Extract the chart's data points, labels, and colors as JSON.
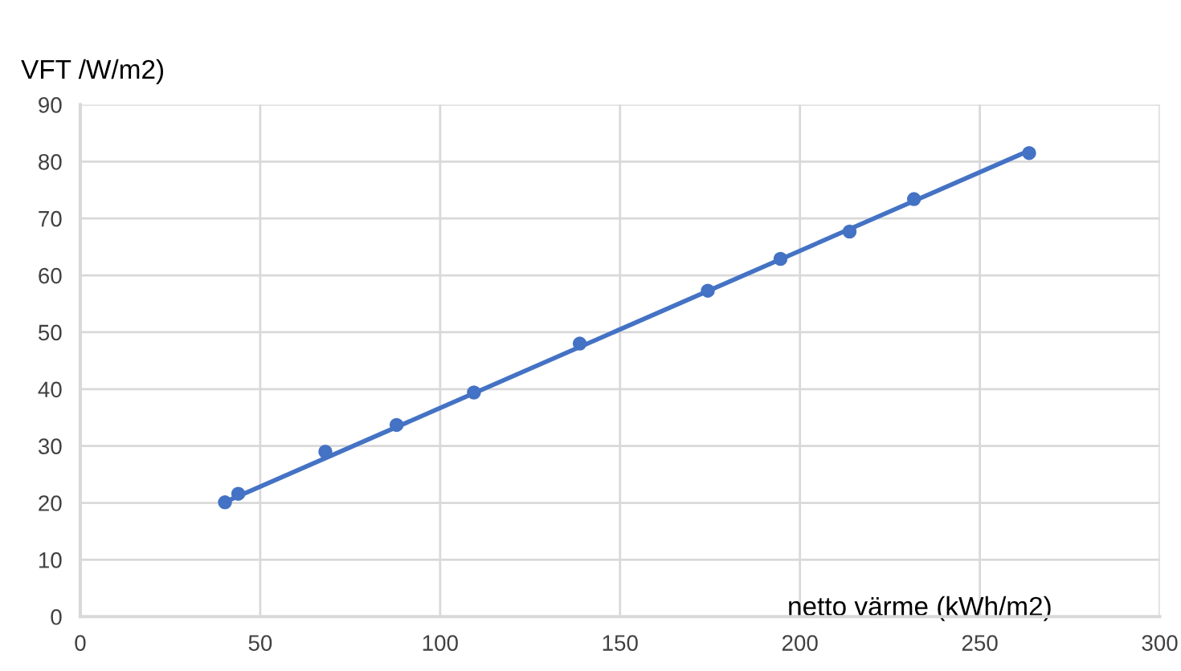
{
  "chart_data": {
    "type": "scatter",
    "xlabel": "netto värme (kWh/m2)",
    "ylabel": "VFT /W/m2)",
    "series": [
      {
        "marker": "circle",
        "color": "#4472c4",
        "x": [
          40.2,
          43.9,
          68.1,
          87.9,
          109.4,
          138.8,
          174.4,
          194.6,
          213.8,
          231.7,
          263.7
        ],
        "values": [
          20.1,
          21.6,
          29.0,
          33.7,
          39.4,
          48.0,
          57.3,
          62.9,
          67.7,
          73.4,
          81.5
        ]
      },
      {
        "type": "line",
        "marker": "none",
        "color": "#4472c4",
        "x": [
          41.8,
          262.2
        ],
        "values": [
          20.6,
          81.5
        ]
      }
    ],
    "xlim": [
      0,
      300
    ],
    "xticks": [
      0,
      50,
      100,
      150,
      200,
      250,
      300
    ],
    "ylim": [
      0,
      90
    ],
    "yticks": [
      0,
      10,
      20,
      30,
      40,
      50,
      60,
      70,
      80,
      90
    ],
    "grid": true
  }
}
